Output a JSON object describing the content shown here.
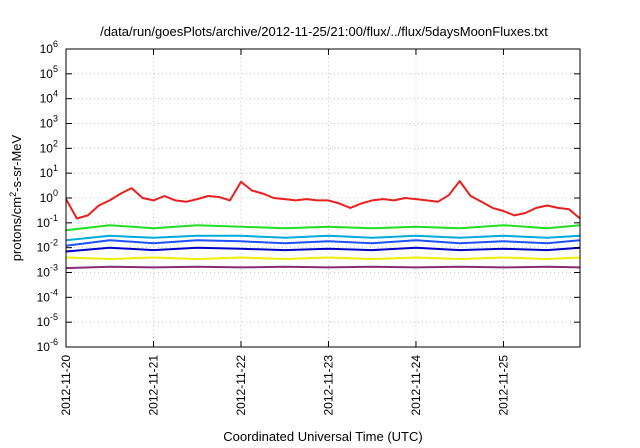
{
  "chart_data": {
    "type": "line",
    "title": "/data/run/goesPlots/archive/2012-11-25/21:00/flux/../flux/5daysMoonFluxes.txt",
    "xlabel": "Coordinated Universal Time (UTC)",
    "ylabel_base": "protons/cm",
    "ylabel_sup": "2",
    "ylabel_rest": "-s-sr-MeV",
    "yscale": "log",
    "ylim": [
      1e-06,
      1000000.0
    ],
    "xlim": [
      "2012-11-20T00:00",
      "2012-11-25T21:00"
    ],
    "y_tick_base": "10",
    "y_tick_exponents": [
      "-6",
      "-5",
      "-4",
      "-3",
      "-2",
      "-1",
      "0",
      "1",
      "2",
      "3",
      "4",
      "5",
      "6"
    ],
    "x_tick_labels": [
      "2012-11-20",
      "2012-11-21",
      "2012-11-22",
      "2012-11-23",
      "2012-11-24",
      "2012-11-25"
    ],
    "grid": true,
    "legend": "none",
    "series": [
      {
        "color": "#e8201e",
        "x": [
          "2012-11-20T00:00",
          "2012-11-20T03:00",
          "2012-11-20T06:00",
          "2012-11-20T09:00",
          "2012-11-20T12:00",
          "2012-11-20T15:00",
          "2012-11-20T18:00",
          "2012-11-20T21:00",
          "2012-11-21T00:00",
          "2012-11-21T03:00",
          "2012-11-21T06:00",
          "2012-11-21T09:00",
          "2012-11-21T12:00",
          "2012-11-21T15:00",
          "2012-11-21T18:00",
          "2012-11-21T21:00",
          "2012-11-22T00:00",
          "2012-11-22T03:00",
          "2012-11-22T06:00",
          "2012-11-22T09:00",
          "2012-11-22T12:00",
          "2012-11-22T15:00",
          "2012-11-22T18:00",
          "2012-11-22T21:00",
          "2012-11-23T00:00",
          "2012-11-23T03:00",
          "2012-11-23T06:00",
          "2012-11-23T09:00",
          "2012-11-23T12:00",
          "2012-11-23T15:00",
          "2012-11-23T18:00",
          "2012-11-23T21:00",
          "2012-11-24T00:00",
          "2012-11-24T03:00",
          "2012-11-24T06:00",
          "2012-11-24T09:00",
          "2012-11-24T12:00",
          "2012-11-24T15:00",
          "2012-11-24T18:00",
          "2012-11-24T21:00",
          "2012-11-25T00:00",
          "2012-11-25T03:00",
          "2012-11-25T06:00",
          "2012-11-25T09:00",
          "2012-11-25T12:00",
          "2012-11-25T15:00",
          "2012-11-25T18:00",
          "2012-11-25T21:00"
        ],
        "values": [
          0.9,
          0.15,
          0.2,
          0.5,
          0.8,
          1.5,
          2.5,
          1.0,
          0.8,
          1.2,
          0.8,
          0.7,
          0.9,
          1.2,
          1.1,
          0.8,
          4.5,
          2.0,
          1.5,
          1.0,
          0.9,
          0.8,
          0.9,
          0.8,
          0.8,
          0.6,
          0.4,
          0.6,
          0.8,
          0.9,
          0.8,
          1.0,
          0.9,
          0.8,
          0.7,
          1.3,
          4.8,
          1.2,
          0.7,
          0.4,
          0.3,
          0.2,
          0.25,
          0.4,
          0.5,
          0.4,
          0.35,
          0.15
        ]
      },
      {
        "color": "#22dd22",
        "x": [
          "2012-11-20T00:00",
          "2012-11-20T12:00",
          "2012-11-21T00:00",
          "2012-11-21T12:00",
          "2012-11-22T00:00",
          "2012-11-22T12:00",
          "2012-11-23T00:00",
          "2012-11-23T12:00",
          "2012-11-24T00:00",
          "2012-11-24T12:00",
          "2012-11-25T00:00",
          "2012-11-25T12:00",
          "2012-11-25T21:00"
        ],
        "values": [
          0.05,
          0.08,
          0.06,
          0.08,
          0.07,
          0.06,
          0.07,
          0.06,
          0.07,
          0.06,
          0.08,
          0.06,
          0.08
        ]
      },
      {
        "color": "#00aadd",
        "x": [
          "2012-11-20T00:00",
          "2012-11-20T12:00",
          "2012-11-21T00:00",
          "2012-11-21T12:00",
          "2012-11-22T00:00",
          "2012-11-22T12:00",
          "2012-11-23T00:00",
          "2012-11-23T12:00",
          "2012-11-24T00:00",
          "2012-11-24T12:00",
          "2012-11-25T00:00",
          "2012-11-25T12:00",
          "2012-11-25T21:00"
        ],
        "values": [
          0.02,
          0.03,
          0.025,
          0.03,
          0.03,
          0.025,
          0.03,
          0.025,
          0.03,
          0.025,
          0.03,
          0.025,
          0.03
        ]
      },
      {
        "color": "#1e50ff",
        "x": [
          "2012-11-20T00:00",
          "2012-11-20T12:00",
          "2012-11-21T00:00",
          "2012-11-21T12:00",
          "2012-11-22T00:00",
          "2012-11-22T12:00",
          "2012-11-23T00:00",
          "2012-11-23T12:00",
          "2012-11-24T00:00",
          "2012-11-24T12:00",
          "2012-11-25T00:00",
          "2012-11-25T12:00",
          "2012-11-25T21:00"
        ],
        "values": [
          0.012,
          0.02,
          0.015,
          0.02,
          0.018,
          0.015,
          0.018,
          0.015,
          0.02,
          0.015,
          0.018,
          0.015,
          0.02
        ]
      },
      {
        "color": "#0000c8",
        "x": [
          "2012-11-20T00:00",
          "2012-11-20T12:00",
          "2012-11-21T00:00",
          "2012-11-21T12:00",
          "2012-11-22T00:00",
          "2012-11-22T12:00",
          "2012-11-23T00:00",
          "2012-11-23T12:00",
          "2012-11-24T00:00",
          "2012-11-24T12:00",
          "2012-11-25T00:00",
          "2012-11-25T12:00",
          "2012-11-25T21:00"
        ],
        "values": [
          0.007,
          0.01,
          0.008,
          0.01,
          0.009,
          0.008,
          0.009,
          0.008,
          0.01,
          0.008,
          0.009,
          0.008,
          0.01
        ]
      },
      {
        "color": "#eeee00",
        "x": [
          "2012-11-20T00:00",
          "2012-11-20T12:00",
          "2012-11-21T00:00",
          "2012-11-21T12:00",
          "2012-11-22T00:00",
          "2012-11-22T12:00",
          "2012-11-23T00:00",
          "2012-11-23T12:00",
          "2012-11-24T00:00",
          "2012-11-24T12:00",
          "2012-11-25T00:00",
          "2012-11-25T12:00",
          "2012-11-25T21:00"
        ],
        "values": [
          0.004,
          0.0035,
          0.004,
          0.0035,
          0.004,
          0.0035,
          0.004,
          0.0035,
          0.004,
          0.0035,
          0.004,
          0.0035,
          0.004
        ]
      },
      {
        "color": "#8b2a7a",
        "x": [
          "2012-11-20T00:00",
          "2012-11-20T12:00",
          "2012-11-21T00:00",
          "2012-11-21T12:00",
          "2012-11-22T00:00",
          "2012-11-22T12:00",
          "2012-11-23T00:00",
          "2012-11-23T12:00",
          "2012-11-24T00:00",
          "2012-11-24T12:00",
          "2012-11-25T00:00",
          "2012-11-25T12:00",
          "2012-11-25T21:00"
        ],
        "values": [
          0.0015,
          0.0017,
          0.0016,
          0.0017,
          0.0016,
          0.0017,
          0.0016,
          0.0017,
          0.0016,
          0.0017,
          0.0016,
          0.0017,
          0.0016
        ]
      }
    ]
  }
}
